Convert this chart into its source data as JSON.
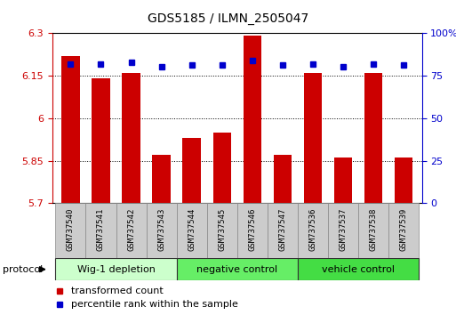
{
  "title": "GDS5185 / ILMN_2505047",
  "samples": [
    "GSM737540",
    "GSM737541",
    "GSM737542",
    "GSM737543",
    "GSM737544",
    "GSM737545",
    "GSM737546",
    "GSM737547",
    "GSM737536",
    "GSM737537",
    "GSM737538",
    "GSM737539"
  ],
  "bar_values": [
    6.22,
    6.14,
    6.16,
    5.87,
    5.93,
    5.95,
    6.29,
    5.87,
    6.16,
    5.86,
    6.16,
    5.86
  ],
  "percentile_values": [
    82,
    82,
    83,
    80,
    81,
    81,
    84,
    81,
    82,
    80,
    82,
    81
  ],
  "bar_color": "#cc0000",
  "dot_color": "#0000cc",
  "ylim_left": [
    5.7,
    6.3
  ],
  "ylim_right": [
    0,
    100
  ],
  "yticks_left": [
    5.7,
    5.85,
    6.0,
    6.15,
    6.3
  ],
  "yticks_right": [
    0,
    25,
    50,
    75,
    100
  ],
  "ytick_labels_left": [
    "5.7",
    "5.85",
    "6",
    "6.15",
    "6.3"
  ],
  "ytick_labels_right": [
    "0",
    "25",
    "50",
    "75",
    "100%"
  ],
  "groups": [
    {
      "label": "Wig-1 depletion",
      "start": 0,
      "end": 3,
      "color": "#ccffcc"
    },
    {
      "label": "negative control",
      "start": 4,
      "end": 7,
      "color": "#66ee66"
    },
    {
      "label": "vehicle control",
      "start": 8,
      "end": 11,
      "color": "#44dd44"
    }
  ],
  "xlabel": "protocol",
  "legend_red": "transformed count",
  "legend_blue": "percentile rank within the sample",
  "bar_width": 0.6,
  "axis_left_color": "#cc0000",
  "axis_right_color": "#0000cc",
  "grid_color": "#000000",
  "sample_box_color": "#cccccc",
  "sample_box_edge": "#888888"
}
